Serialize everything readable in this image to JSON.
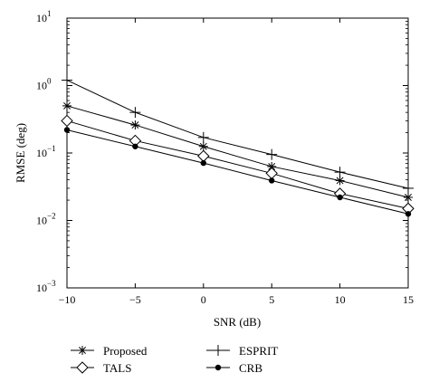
{
  "chart_data": {
    "type": "line",
    "title": "",
    "xlabel": "SNR (dB)",
    "ylabel": "RMSE (deg)",
    "x": [
      -10,
      -5,
      0,
      5,
      10,
      15
    ],
    "xlim": [
      -10,
      15
    ],
    "ylim": [
      0.001,
      10
    ],
    "yscale": "log",
    "x_ticks": [
      "−10",
      "−5",
      "0",
      "5",
      "10",
      "15"
    ],
    "y_ticks": [
      {
        "base": "10",
        "exp": "1"
      },
      {
        "base": "10",
        "exp": "0"
      },
      {
        "base": "10",
        "exp": "−1"
      },
      {
        "base": "10",
        "exp": "−2"
      },
      {
        "base": "10",
        "exp": "−3"
      }
    ],
    "grid": false,
    "legend_position": "bottom",
    "series": [
      {
        "name": "Proposed",
        "marker": "asterisk",
        "values": [
          0.5,
          0.26,
          0.125,
          0.063,
          0.039,
          0.022
        ]
      },
      {
        "name": "ESPRIT",
        "marker": "plus",
        "values": [
          1.2,
          0.4,
          0.17,
          0.095,
          0.052,
          0.03
        ]
      },
      {
        "name": "TALS",
        "marker": "diamond",
        "values": [
          0.3,
          0.152,
          0.09,
          0.05,
          0.025,
          0.015
        ]
      },
      {
        "name": "CRB",
        "marker": "dot",
        "values": [
          0.22,
          0.125,
          0.071,
          0.039,
          0.022,
          0.0125
        ]
      }
    ],
    "colors": {
      "line": "#000000",
      "background": "#ffffff"
    }
  }
}
